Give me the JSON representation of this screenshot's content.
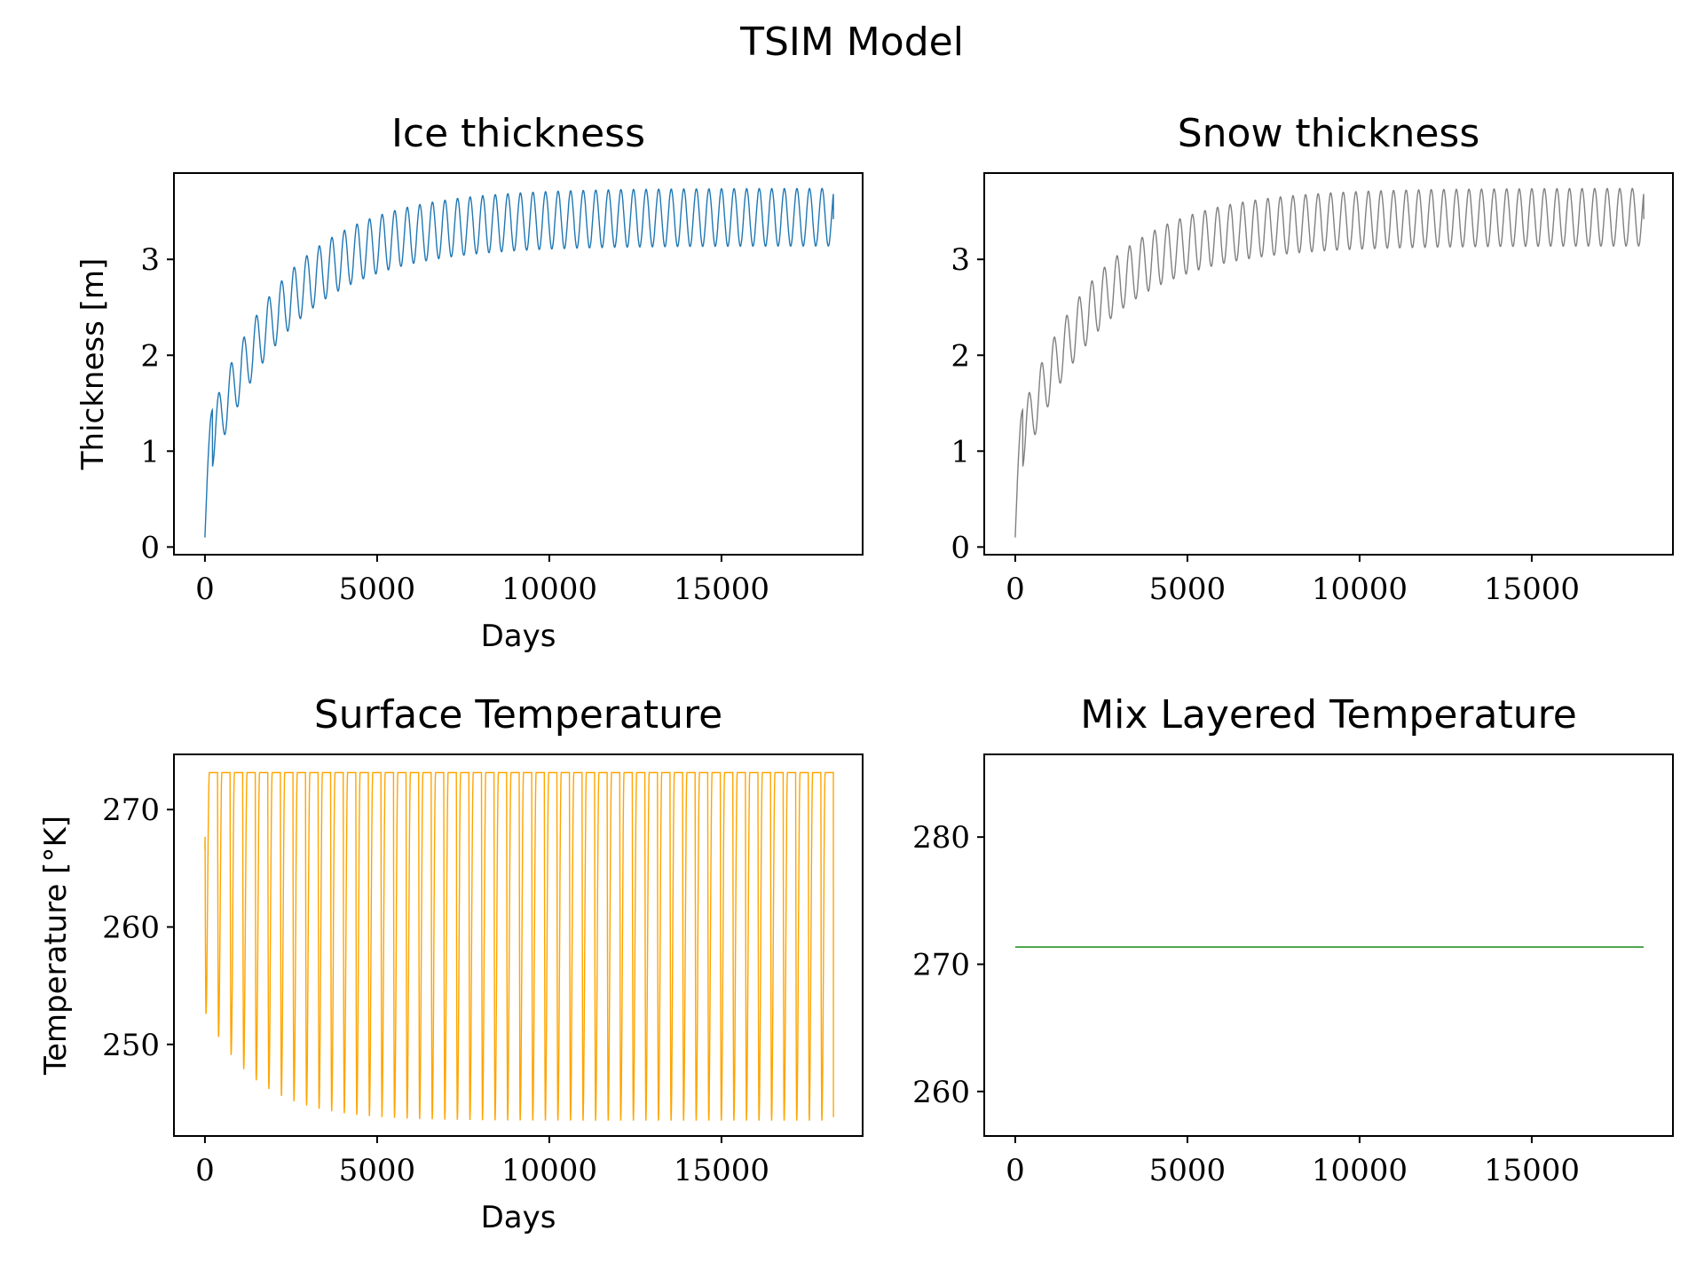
{
  "figure": {
    "suptitle": "TSIM Model"
  },
  "chart_data": [
    {
      "id": "ice",
      "type": "line",
      "title": "Ice thickness",
      "xlabel": "Days",
      "ylabel": "Thickness [m]",
      "xlim": [
        -900,
        19100
      ],
      "ylim": [
        -0.08,
        3.9
      ],
      "xticks": [
        0,
        5000,
        10000,
        15000
      ],
      "yticks": [
        0,
        1,
        2,
        3
      ],
      "grid": false,
      "series": [
        {
          "color": "#1f77b4",
          "x_start": 0,
          "x_end": 18250,
          "period_days": 365,
          "initial_value": 0.1,
          "final_value": 3.42,
          "annual_max_asymptote": 3.74,
          "annual_min_asymptote": 3.14,
          "approach_timescale_days": 2300,
          "first_max": 1.43,
          "first_min": 0.84
        }
      ]
    },
    {
      "id": "snow",
      "type": "line",
      "title": "Snow thickness",
      "xlabel": "",
      "ylabel": "",
      "xlim": [
        -900,
        19100
      ],
      "ylim": [
        -0.08,
        3.9
      ],
      "xticks": [
        0,
        5000,
        10000,
        15000
      ],
      "yticks": [
        0,
        1,
        2,
        3
      ],
      "grid": false,
      "series": [
        {
          "color": "#808080",
          "x_start": 0,
          "x_end": 18250,
          "period_days": 365,
          "initial_value": 0.1,
          "final_value": 3.42,
          "annual_max_asymptote": 3.74,
          "annual_min_asymptote": 3.14,
          "approach_timescale_days": 2300,
          "first_max": 1.43,
          "first_min": 0.84
        }
      ]
    },
    {
      "id": "surface",
      "type": "line",
      "title": "Surface Temperature",
      "xlabel": "Days",
      "ylabel": "Temperature [°K]",
      "xlim": [
        -900,
        19100
      ],
      "ylim": [
        242.2,
        274.7
      ],
      "xticks": [
        0,
        5000,
        10000,
        15000
      ],
      "yticks": [
        250,
        260,
        270
      ],
      "grid": false,
      "series": [
        {
          "color": "#ffa500",
          "x_start": 0,
          "x_end": 18250,
          "period_days": 365,
          "initial_value": 266.6,
          "final_value": 243.8,
          "annual_max": 273.15,
          "annual_min_asymptote": 243.5,
          "first_min": 252.6,
          "approach_timescale_days": 1500
        }
      ]
    },
    {
      "id": "mix",
      "type": "line",
      "title": "Mix Layered Temperature",
      "xlabel": "",
      "ylabel": "",
      "xlim": [
        -900,
        19100
      ],
      "ylim": [
        256.5,
        286.5
      ],
      "xticks": [
        0,
        5000,
        10000,
        15000
      ],
      "yticks": [
        260,
        270,
        280
      ],
      "grid": false,
      "series": [
        {
          "color": "#008000",
          "x_start": 0,
          "x_end": 18250,
          "constant_value": 271.35
        }
      ]
    }
  ]
}
